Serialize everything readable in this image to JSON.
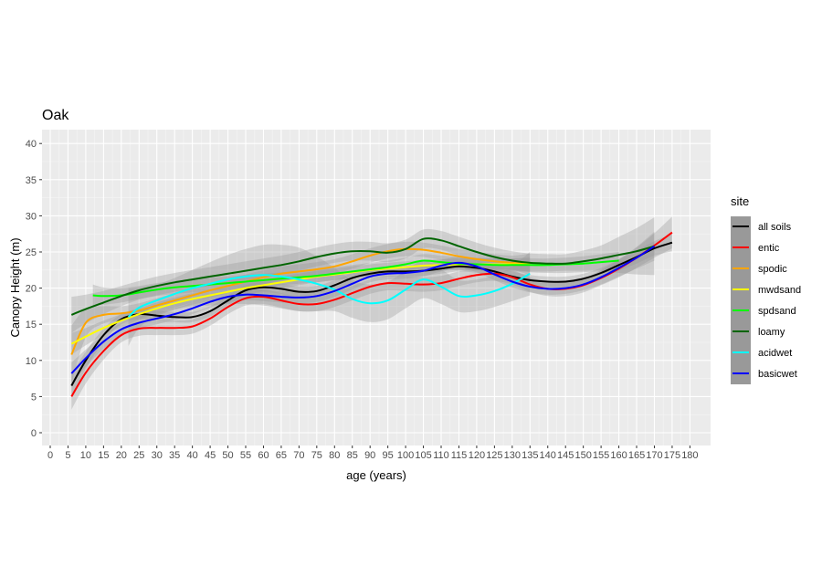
{
  "chart_data": {
    "type": "line",
    "title": "Oak",
    "xlabel": "age (years)",
    "ylabel": "Canopy Height (m)",
    "xlim": [
      0,
      180
    ],
    "ylim": [
      0,
      40
    ],
    "x_ticks": [
      0,
      5,
      10,
      15,
      20,
      25,
      30,
      35,
      40,
      45,
      50,
      55,
      60,
      65,
      70,
      75,
      80,
      85,
      90,
      95,
      100,
      105,
      110,
      115,
      120,
      125,
      130,
      135,
      140,
      145,
      150,
      155,
      160,
      165,
      170,
      175,
      180
    ],
    "y_ticks": [
      0,
      5,
      10,
      15,
      20,
      25,
      30,
      35,
      40
    ],
    "grid": true,
    "legend_title": "site",
    "legend_position": "right",
    "background": "#ebebeb",
    "series": [
      {
        "name": "all soils",
        "color": "#000000",
        "x": [
          6,
          10,
          15,
          20,
          25,
          30,
          35,
          40,
          45,
          50,
          55,
          60,
          65,
          70,
          75,
          80,
          85,
          90,
          95,
          100,
          105,
          110,
          115,
          120,
          125,
          130,
          135,
          140,
          145,
          150,
          155,
          160,
          165,
          170,
          175
        ],
        "y": [
          6.5,
          10,
          13.5,
          15.7,
          16.4,
          16.2,
          16,
          16,
          16.8,
          18.3,
          19.7,
          20.1,
          19.9,
          19.5,
          19.6,
          20.4,
          21.4,
          22,
          22.3,
          22.3,
          22.4,
          22.7,
          23,
          22.8,
          22.3,
          21.6,
          21.1,
          20.9,
          20.9,
          21.3,
          22.1,
          23.2,
          24.3,
          25.5,
          26.3
        ],
        "band": [
          1.6,
          1.2,
          0.9,
          0.7,
          0.7,
          0.7,
          0.7,
          0.7,
          0.7,
          0.7,
          0.7,
          0.7,
          0.7,
          0.7,
          0.7,
          0.7,
          0.7,
          0.7,
          0.7,
          0.7,
          0.7,
          0.7,
          0.7,
          0.7,
          0.7,
          0.7,
          0.7,
          0.7,
          0.7,
          0.7,
          0.7,
          0.8,
          0.9,
          1.0,
          1.2
        ]
      },
      {
        "name": "entic",
        "color": "#ff0000",
        "x": [
          6,
          10,
          15,
          20,
          25,
          30,
          35,
          40,
          45,
          50,
          55,
          60,
          65,
          70,
          75,
          80,
          85,
          90,
          95,
          100,
          105,
          110,
          115,
          120,
          125,
          130,
          135,
          140,
          145,
          150,
          155,
          160,
          165,
          170,
          175
        ],
        "y": [
          5,
          8.3,
          11.3,
          13.5,
          14.4,
          14.5,
          14.5,
          14.7,
          15.8,
          17.4,
          18.6,
          18.8,
          18.3,
          17.8,
          17.8,
          18.4,
          19.3,
          20.2,
          20.7,
          20.6,
          20.5,
          20.7,
          21.3,
          21.8,
          22,
          21.5,
          20.5,
          19.9,
          19.9,
          20.4,
          21.4,
          22.7,
          24.2,
          25.9,
          27.7
        ],
        "band": [
          1.8,
          1.5,
          1.2,
          1.0,
          1.0,
          1.0,
          1.0,
          1.0,
          1.0,
          1.0,
          1.0,
          1.0,
          1.0,
          1.0,
          1.0,
          1.0,
          1.0,
          1.0,
          1.0,
          1.0,
          1.0,
          1.0,
          1.0,
          1.0,
          1.0,
          1.0,
          1.0,
          1.0,
          1.0,
          1.0,
          1.0,
          1.2,
          1.4,
          1.7,
          2.2
        ]
      },
      {
        "name": "spodic",
        "color": "#ffa500",
        "x": [
          6,
          10,
          15,
          20,
          25,
          30,
          35,
          40,
          45,
          50,
          55,
          60,
          65,
          70,
          75,
          80,
          85,
          90,
          95,
          100,
          105,
          110,
          115,
          120,
          125,
          130,
          135
        ],
        "y": [
          10.8,
          15.2,
          16.3,
          16.5,
          16.9,
          17.6,
          18.3,
          19,
          19.7,
          20.3,
          20.9,
          21.5,
          22,
          22.3,
          22.6,
          23,
          23.7,
          24.5,
          25.1,
          25.4,
          25.3,
          24.9,
          24.4,
          24,
          23.7,
          23.5,
          23.3
        ],
        "band": [
          4.0,
          2.0,
          1.2,
          1.0,
          1.0,
          1.0,
          1.0,
          1.0,
          1.0,
          1.0,
          1.0,
          1.0,
          1.0,
          1.0,
          1.0,
          1.0,
          1.0,
          1.0,
          1.0,
          1.0,
          1.0,
          1.0,
          1.0,
          1.0,
          1.0,
          1.0,
          1.5
        ]
      },
      {
        "name": "mwdsand",
        "color": "#ffff00",
        "x": [
          6,
          10,
          15,
          20,
          25,
          30,
          35,
          40,
          45,
          50,
          55,
          60,
          65,
          70,
          75,
          80,
          85,
          90,
          95,
          100,
          105,
          110,
          115,
          120,
          125,
          130,
          135
        ],
        "y": [
          12.3,
          13.3,
          14.5,
          15.5,
          16.4,
          17.2,
          17.9,
          18.5,
          19,
          19.5,
          20,
          20.4,
          20.8,
          21.2,
          21.6,
          21.9,
          22.2,
          22.5,
          22.7,
          22.9,
          23.1,
          23.2,
          23.3,
          23.3,
          23.3,
          23.3,
          23.3
        ],
        "band": [
          1.5,
          1.2,
          1.0,
          0.9,
          0.8,
          0.8,
          0.8,
          0.8,
          0.8,
          0.8,
          0.8,
          0.8,
          0.8,
          0.8,
          0.8,
          0.8,
          0.8,
          0.8,
          0.8,
          0.8,
          0.8,
          0.8,
          0.8,
          0.8,
          0.8,
          0.8,
          1.0
        ]
      },
      {
        "name": "spdsand",
        "color": "#00ff00",
        "x": [
          12,
          15,
          20,
          25,
          30,
          35,
          40,
          45,
          50,
          55,
          60,
          65,
          70,
          75,
          80,
          85,
          90,
          95,
          100,
          105,
          110,
          115,
          120,
          125,
          130,
          135,
          140,
          145,
          150,
          155,
          160
        ],
        "y": [
          19,
          18.9,
          19,
          19.4,
          19.8,
          20.1,
          20.3,
          20.5,
          20.7,
          20.9,
          21.1,
          21.3,
          21.5,
          21.7,
          22,
          22.3,
          22.6,
          22.9,
          23.3,
          23.8,
          23.6,
          23.4,
          23.3,
          23.2,
          23.2,
          23.2,
          23.2,
          23.3,
          23.4,
          23.6,
          23.8
        ],
        "band": [
          1.5,
          1.2,
          1.0,
          0.9,
          0.9,
          0.9,
          0.9,
          0.9,
          0.9,
          0.9,
          0.9,
          0.9,
          0.9,
          0.9,
          0.9,
          0.9,
          0.9,
          0.9,
          0.9,
          0.9,
          0.9,
          0.9,
          0.9,
          0.9,
          0.9,
          0.9,
          0.9,
          0.9,
          1.0,
          1.1,
          1.2
        ]
      },
      {
        "name": "loamy",
        "color": "#006400",
        "x": [
          6,
          10,
          15,
          20,
          25,
          30,
          35,
          40,
          45,
          50,
          55,
          60,
          65,
          70,
          75,
          80,
          85,
          90,
          95,
          100,
          105,
          110,
          115,
          120,
          125,
          130,
          135,
          140,
          145,
          150,
          155,
          160,
          165,
          170
        ],
        "y": [
          16.3,
          17.1,
          18,
          18.9,
          19.7,
          20.3,
          20.8,
          21.2,
          21.6,
          22,
          22.4,
          22.8,
          23.2,
          23.7,
          24.3,
          24.8,
          25.1,
          25.1,
          24.9,
          25.4,
          26.8,
          26.6,
          25.8,
          25,
          24.3,
          23.8,
          23.5,
          23.4,
          23.4,
          23.7,
          24.1,
          24.6,
          25.1,
          25.8
        ],
        "band": [
          2.5,
          2.0,
          1.6,
          1.4,
          1.3,
          1.3,
          1.3,
          1.3,
          1.3,
          1.3,
          1.3,
          1.3,
          1.3,
          1.3,
          1.3,
          1.3,
          1.3,
          1.3,
          1.3,
          1.3,
          1.3,
          1.3,
          1.3,
          1.3,
          1.3,
          1.3,
          1.3,
          1.3,
          1.3,
          1.5,
          1.8,
          2.5,
          3.2,
          4.0
        ]
      },
      {
        "name": "acidwet",
        "color": "#00ffff",
        "x": [
          22,
          25,
          30,
          35,
          40,
          45,
          50,
          55,
          60,
          65,
          70,
          75,
          80,
          85,
          90,
          95,
          100,
          105,
          110,
          115,
          120,
          125,
          130,
          135
        ],
        "y": [
          16,
          17.3,
          18.3,
          19.2,
          20,
          20.6,
          21.2,
          21.6,
          21.8,
          21.6,
          21.2,
          20.6,
          19.8,
          18.5,
          17.9,
          18.3,
          19.8,
          21.2,
          20.2,
          18.9,
          19,
          19.6,
          20.6,
          22
        ],
        "band": [
          4.0,
          2.8,
          2.2,
          2.2,
          2.5,
          3.0,
          3.4,
          3.8,
          4.2,
          4.4,
          4.4,
          3.8,
          3.0,
          2.6,
          2.6,
          2.6,
          2.6,
          2.6,
          2.4,
          2.2,
          2.2,
          2.2,
          2.4,
          3.0
        ]
      },
      {
        "name": "basicwet",
        "color": "#0000ff",
        "x": [
          6,
          10,
          15,
          20,
          25,
          30,
          35,
          40,
          45,
          50,
          55,
          60,
          65,
          70,
          75,
          80,
          85,
          90,
          95,
          100,
          105,
          110,
          115,
          120,
          125,
          130,
          135,
          140,
          145,
          150,
          155,
          160,
          165,
          170
        ],
        "y": [
          8.2,
          10.3,
          12.6,
          14.3,
          15.2,
          15.8,
          16.4,
          17.2,
          18.1,
          18.8,
          19.1,
          19,
          18.8,
          18.7,
          18.9,
          19.6,
          20.6,
          21.6,
          22,
          22.1,
          22.4,
          23.1,
          23.5,
          23,
          21.9,
          20.9,
          20.2,
          19.9,
          20,
          20.5,
          21.5,
          22.8,
          24.2,
          25.8
        ],
        "band": [
          1.5,
          1.2,
          1.0,
          0.9,
          0.8,
          0.8,
          0.8,
          0.8,
          0.8,
          0.8,
          0.8,
          0.8,
          0.8,
          0.8,
          0.8,
          0.8,
          0.8,
          0.8,
          0.8,
          0.8,
          0.8,
          0.8,
          0.8,
          0.8,
          0.8,
          0.8,
          0.8,
          0.8,
          0.8,
          0.8,
          1.0,
          1.2,
          1.5,
          2.0
        ]
      }
    ]
  }
}
